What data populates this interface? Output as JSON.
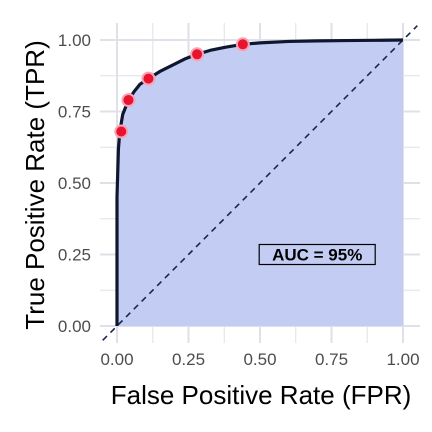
{
  "chart_data": {
    "type": "line",
    "title": "",
    "xlabel": "False Positive Rate (FPR)",
    "ylabel": "True Positive Rate (TPR)",
    "xlim": [
      0,
      1
    ],
    "ylim": [
      0,
      1
    ],
    "x_ticks": [
      "0.00",
      "0.25",
      "0.50",
      "0.75",
      "1.00"
    ],
    "y_ticks": [
      "0.00",
      "0.25",
      "0.50",
      "0.75",
      "1.00"
    ],
    "grid": true,
    "roc_curve": {
      "x": [
        0.0,
        0.0,
        0.005,
        0.01,
        0.02,
        0.04,
        0.06,
        0.08,
        0.11,
        0.15,
        0.2,
        0.24,
        0.28,
        0.33,
        0.38,
        0.44,
        0.5,
        0.6,
        0.7,
        0.8,
        0.9,
        1.0
      ],
      "y": [
        0.0,
        0.45,
        0.62,
        0.68,
        0.74,
        0.79,
        0.82,
        0.845,
        0.865,
        0.89,
        0.915,
        0.935,
        0.95,
        0.965,
        0.975,
        0.985,
        0.99,
        0.995,
        0.997,
        0.998,
        0.999,
        1.0
      ]
    },
    "highlighted_points": {
      "x": [
        0.015,
        0.04,
        0.11,
        0.28,
        0.44
      ],
      "y": [
        0.68,
        0.79,
        0.865,
        0.95,
        0.985
      ]
    },
    "reference_line": {
      "x": [
        0,
        1
      ],
      "y": [
        0,
        1
      ]
    },
    "annotation": "AUC =  95%",
    "annotation_position": {
      "x": 0.7,
      "y": 0.25
    },
    "colors": {
      "fill": "#c3cdf4",
      "curve": "#0d1830",
      "point_fill": "#e8132e",
      "point_outline": "#f7a3b4",
      "reference": "#1b2550",
      "grid": "#e0e0e8"
    }
  }
}
